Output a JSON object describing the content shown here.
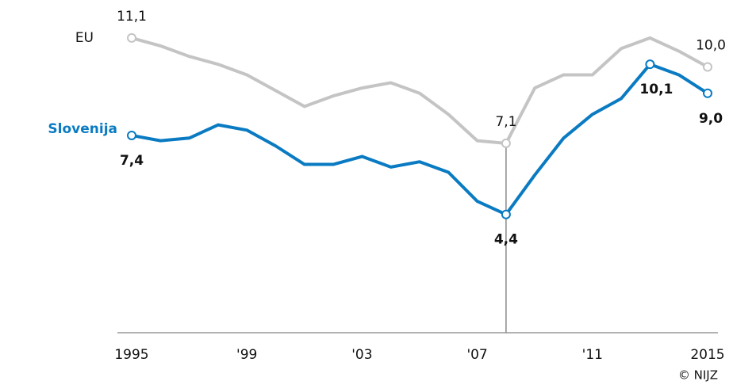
{
  "chart_data": {
    "type": "line",
    "x": [
      1995,
      1996,
      1997,
      1998,
      1999,
      2000,
      2001,
      2002,
      2003,
      2004,
      2005,
      2006,
      2007,
      2008,
      2009,
      2010,
      2011,
      2012,
      2013,
      2014,
      2015
    ],
    "series": [
      {
        "name": "EU",
        "color": "#c4c4c4",
        "values": [
          11.1,
          10.8,
          10.4,
          10.1,
          9.7,
          9.1,
          8.5,
          8.9,
          9.2,
          9.4,
          9.0,
          8.2,
          7.2,
          7.1,
          9.2,
          9.7,
          9.7,
          10.7,
          11.1,
          10.6,
          10.0
        ],
        "value_labels": [
          "11,1",
          null,
          null,
          null,
          null,
          null,
          null,
          null,
          null,
          null,
          null,
          null,
          null,
          "7,1",
          null,
          null,
          null,
          null,
          null,
          null,
          "10,0"
        ]
      },
      {
        "name": "Slovenija",
        "color": "#0a7bc2",
        "values": [
          7.4,
          7.2,
          7.3,
          7.8,
          7.6,
          7.0,
          6.3,
          6.3,
          6.6,
          6.2,
          6.4,
          6.0,
          4.9,
          4.4,
          5.9,
          7.3,
          8.2,
          8.8,
          10.1,
          9.7,
          9.0
        ],
        "value_labels": [
          "7,4",
          null,
          null,
          null,
          null,
          null,
          null,
          null,
          null,
          null,
          null,
          null,
          null,
          "4,4",
          null,
          null,
          null,
          null,
          "10,1",
          null,
          "9,0"
        ]
      }
    ],
    "xlim": [
      1995,
      2015
    ],
    "xticks": [
      1995,
      {
        "value": 1999,
        "label": "'99"
      },
      {
        "value": 2003,
        "label": "'03"
      },
      {
        "value": 2007,
        "label": "'07"
      },
      {
        "value": 2011,
        "label": "'11"
      },
      2015
    ],
    "ylim": [
      0,
      12
    ],
    "highlight_x": 2008,
    "grid": false,
    "source": "© NIJZ"
  }
}
